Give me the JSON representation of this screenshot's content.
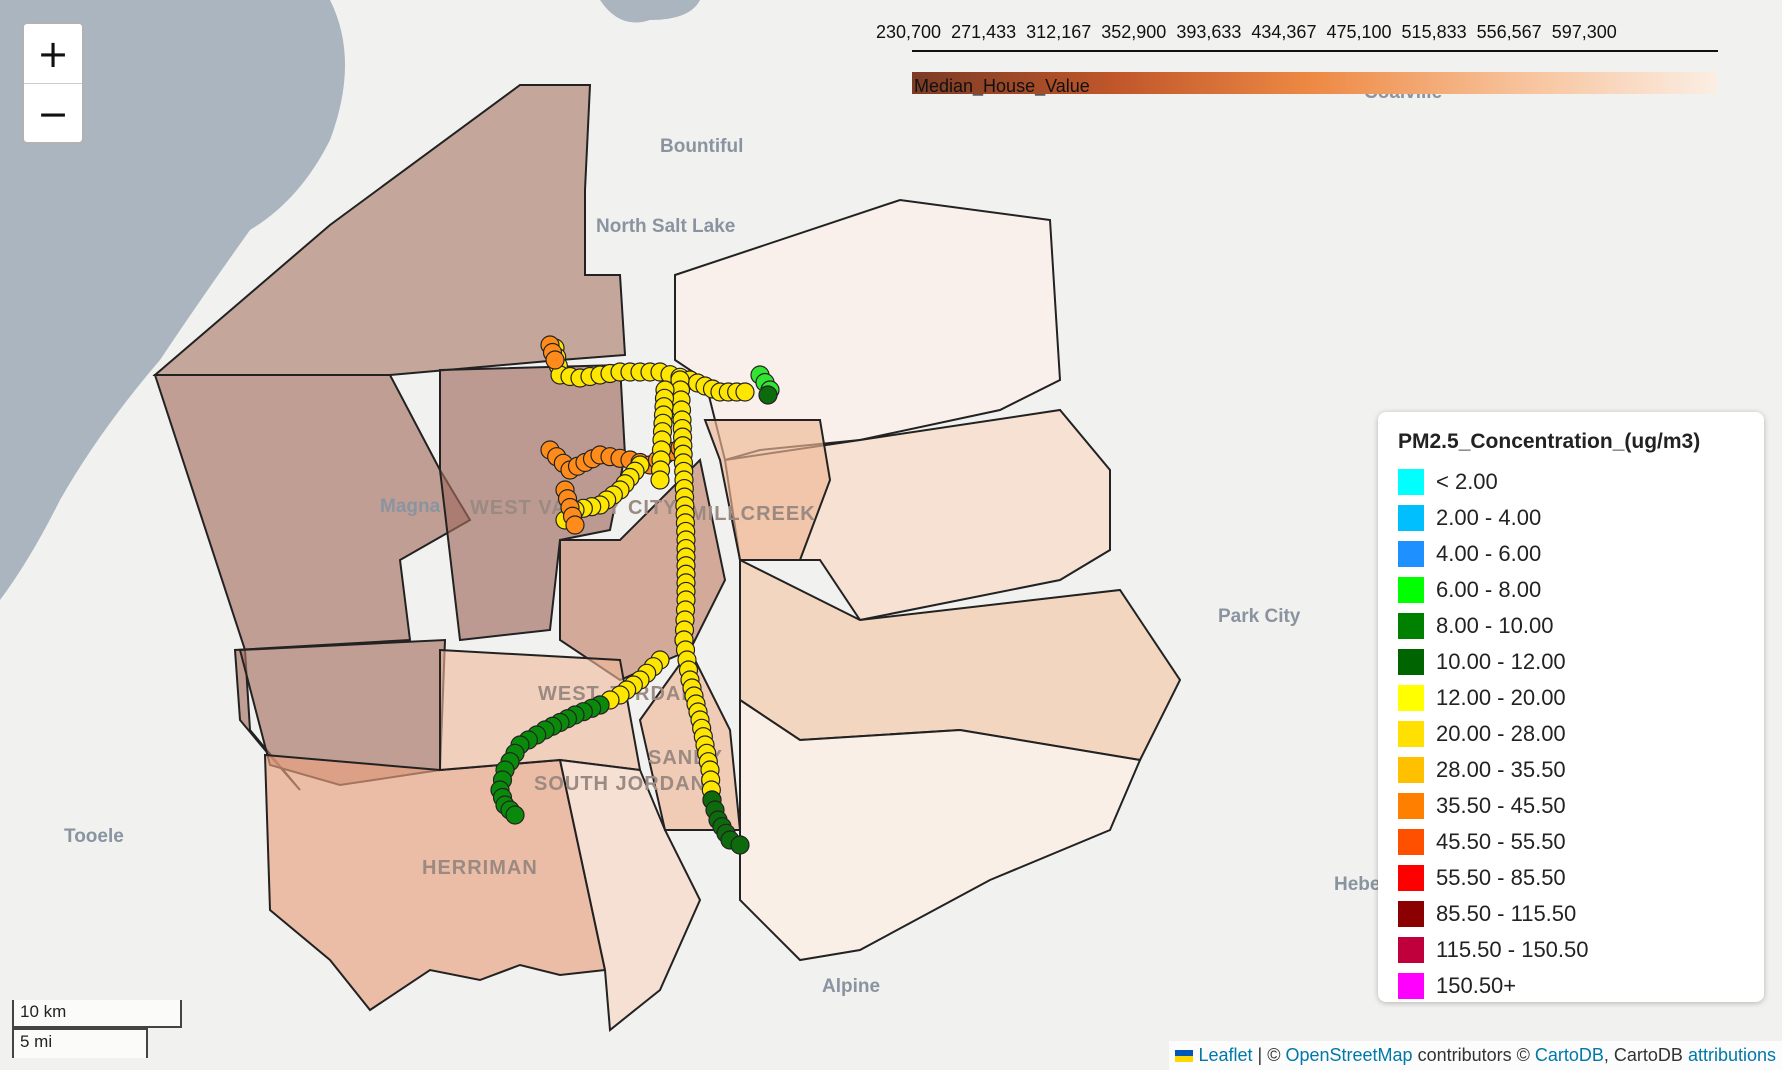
{
  "map": {
    "places": [
      {
        "id": "bountiful",
        "label": "Bountiful"
      },
      {
        "id": "north-salt-lake",
        "label": "North Salt Lake"
      },
      {
        "id": "coalville",
        "label": "Coalville"
      },
      {
        "id": "magna",
        "label": "Magna"
      },
      {
        "id": "west-valley-city",
        "label": "WEST VALLEY CITY"
      },
      {
        "id": "millcreek",
        "label": "MILLCREEK"
      },
      {
        "id": "park-city",
        "label": "Park City"
      },
      {
        "id": "west-jordan",
        "label": "WEST JORDAN"
      },
      {
        "id": "sandy",
        "label": "SANDY"
      },
      {
        "id": "south-jordan",
        "label": "SOUTH JORDAN"
      },
      {
        "id": "herriman",
        "label": "HERRIMAN"
      },
      {
        "id": "tooele",
        "label": "Tooele"
      },
      {
        "id": "heber",
        "label": "Heber"
      },
      {
        "id": "alpine",
        "label": "Alpine"
      }
    ]
  },
  "zoom": {
    "in_label": "+",
    "out_label": "−"
  },
  "colorbar": {
    "title": "Median_House_Value",
    "ticks": [
      "230,700",
      "271,433",
      "312,167",
      "352,900",
      "393,633",
      "434,367",
      "475,100",
      "515,833",
      "556,567",
      "597,300"
    ],
    "range": [
      230700,
      597300
    ],
    "colors": [
      "#7b3b25",
      "#c0562a",
      "#ee8a45",
      "#f7c199",
      "#fbeee4"
    ]
  },
  "legend": {
    "title": "PM2.5_Concentration_(ug/m3)",
    "items": [
      {
        "label": "< 2.00",
        "color": "#00ffff"
      },
      {
        "label": "2.00 - 4.00",
        "color": "#00bfff"
      },
      {
        "label": "4.00 - 6.00",
        "color": "#1e90ff"
      },
      {
        "label": "6.00 - 8.00",
        "color": "#00ff00"
      },
      {
        "label": "8.00 - 10.00",
        "color": "#008000"
      },
      {
        "label": "10.00 - 12.00",
        "color": "#006400"
      },
      {
        "label": "12.00 - 20.00",
        "color": "#ffff00"
      },
      {
        "label": "20.00 - 28.00",
        "color": "#ffe000"
      },
      {
        "label": "28.00 - 35.50",
        "color": "#ffc000"
      },
      {
        "label": "35.50 - 45.50",
        "color": "#ff8000"
      },
      {
        "label": "45.50 - 55.50",
        "color": "#ff5000"
      },
      {
        "label": "55.50 - 85.50",
        "color": "#ff0000"
      },
      {
        "label": "85.50 - 115.50",
        "color": "#8b0000"
      },
      {
        "label": "115.50 - 150.50",
        "color": "#c0003c"
      },
      {
        "label": "150.50+",
        "color": "#ff00ff"
      }
    ]
  },
  "scale": {
    "km": "10 km",
    "mi": "5 mi"
  },
  "attribution": {
    "leaflet": "Leaflet",
    "sep1": " | © ",
    "osm": "OpenStreetMap",
    "mid": " contributors © ",
    "cartodb": "CartoDB",
    "mid2": ", CartoDB ",
    "attributions": "attributions"
  }
}
